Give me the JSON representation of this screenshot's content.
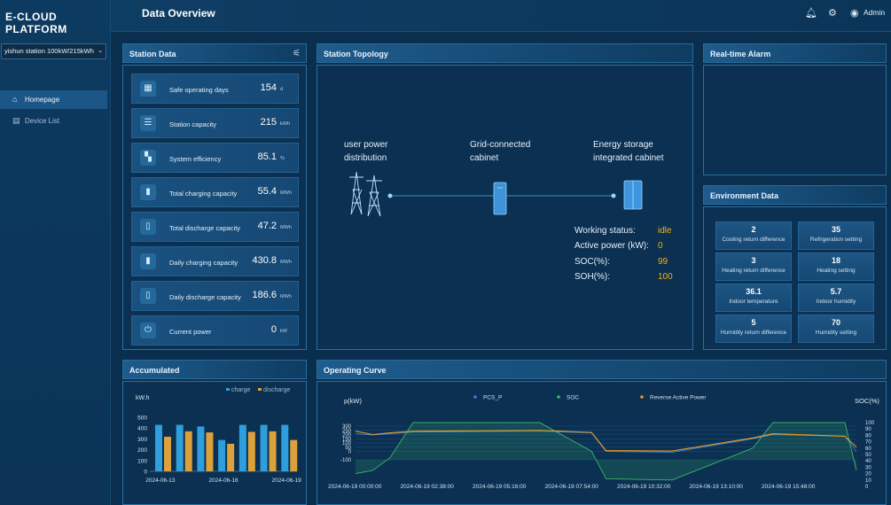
{
  "brand": "E-CLOUD PLATFORM",
  "station_select": "yishun station 100kW/215kWh",
  "nav": [
    {
      "label": "Homepage",
      "icon": "home-icon",
      "active": true
    },
    {
      "label": "Device List",
      "icon": "list-icon",
      "active": false
    }
  ],
  "header": {
    "title": "Data Overview",
    "user": "Admin"
  },
  "panels": {
    "station_data": "Station Data",
    "topology": "Station Topology",
    "alarm": "Real-time Alarm",
    "environment": "Environment Data",
    "accumulated": "Accumulated",
    "curve": "Operating Curve"
  },
  "station_data": [
    {
      "label": "Safe operating days",
      "value": "154",
      "unit": "d",
      "icon": "calendar-icon"
    },
    {
      "label": "Station capacity",
      "value": "215",
      "unit": "kWh",
      "icon": "server-icon"
    },
    {
      "label": "System efficiency",
      "value": "85.1",
      "unit": "%",
      "icon": "grid-icon"
    },
    {
      "label": "Total charging capacity",
      "value": "55.4",
      "unit": "MWh",
      "icon": "battery-charge-icon"
    },
    {
      "label": "Total discharge capacity",
      "value": "47.2",
      "unit": "MWh",
      "icon": "battery-discharge-icon"
    },
    {
      "label": "Daily charging capacity",
      "value": "430.8",
      "unit": "MWh",
      "icon": "battery-charge-icon"
    },
    {
      "label": "Daily discharge capacity",
      "value": "186.6",
      "unit": "MWh",
      "icon": "battery-discharge-icon"
    },
    {
      "label": "Current power",
      "value": "0",
      "unit": "kW",
      "icon": "power-icon"
    }
  ],
  "topology": {
    "nodes": [
      "user power distribution",
      "Grid-connected cabinet",
      "Energy storage integrated cabinet"
    ],
    "status": [
      {
        "key": "Working status:",
        "value": "idle"
      },
      {
        "key": "Active power (kW):",
        "value": "0"
      },
      {
        "key": "SOC(%):",
        "value": "99"
      },
      {
        "key": "SOH(%):",
        "value": "100"
      }
    ]
  },
  "environment": [
    {
      "value": "2",
      "label": "Cooling return difference"
    },
    {
      "value": "35",
      "label": "Refrigeration setting"
    },
    {
      "value": "3",
      "label": "Heating return difference"
    },
    {
      "value": "18",
      "label": "Heating setting"
    },
    {
      "value": "36.1",
      "label": "Indoor temperature"
    },
    {
      "value": "5.7",
      "label": "Indoor humidity"
    },
    {
      "value": "5",
      "label": "Humidity return difference"
    },
    {
      "value": "70",
      "label": "Humidity setting"
    }
  ],
  "chart_data": [
    {
      "type": "bar",
      "ylabel": "kW.h",
      "ylim": [
        0,
        500
      ],
      "yticks": [
        0,
        100,
        200,
        300,
        400,
        500
      ],
      "categories": [
        "2024-06-13",
        "",
        "",
        "2024-06-16",
        "",
        "",
        "2024-06-19"
      ],
      "xtick_labels": [
        "2024-06-13",
        "2024-06-16",
        "2024-06-19"
      ],
      "legend_position": "top-right",
      "colors": {
        "charge": "#2e9fdc",
        "discharge": "#dca13a"
      },
      "series": [
        {
          "name": "charge",
          "values": [
            430,
            430,
            415,
            290,
            430,
            430,
            430
          ]
        },
        {
          "name": "discharge",
          "values": [
            320,
            370,
            360,
            255,
            365,
            370,
            290
          ]
        }
      ]
    },
    {
      "type": "line",
      "ylabel": "p(kW)",
      "y2label": "SOC(%)",
      "ylim": [
        -100,
        300
      ],
      "yticks": [
        -100,
        0,
        50,
        100,
        150,
        200,
        250,
        300
      ],
      "y2lim": [
        0,
        100
      ],
      "y2ticks": [
        0,
        10,
        20,
        30,
        40,
        50,
        60,
        70,
        80,
        90,
        100
      ],
      "xtick_labels": [
        "2024-06-19 00:00:00",
        "2024-06-19 02:38:00",
        "2024-06-19 05:16:00",
        "2024-06-19 07:54:00",
        "2024-06-19 10:32:00",
        "2024-06-19 13:10:00",
        "2024-06-19 15:48:00"
      ],
      "x_hours": [
        0,
        0.6,
        1.2,
        2.0,
        6.4,
        8.2,
        8.7,
        11.0,
        13.8,
        14.5,
        17.0,
        17.4
      ],
      "legend_position": "top",
      "series": [
        {
          "name": "PCS_P",
          "color": "#3c7fd6",
          "values": [
            210,
            195,
            210,
            230,
            240,
            220,
            0,
            -10,
            150,
            200,
            180,
            0
          ]
        },
        {
          "name": "SOC",
          "color": "#3db56a",
          "values": [
            20,
            25,
            45,
            100,
            100,
            55,
            12,
            10,
            60,
            100,
            100,
            25
          ]
        },
        {
          "name": "Reverse Active Power",
          "color": "#e99a1e",
          "values": [
            240,
            200,
            220,
            240,
            250,
            225,
            10,
            5,
            160,
            210,
            180,
            50
          ]
        }
      ]
    }
  ]
}
